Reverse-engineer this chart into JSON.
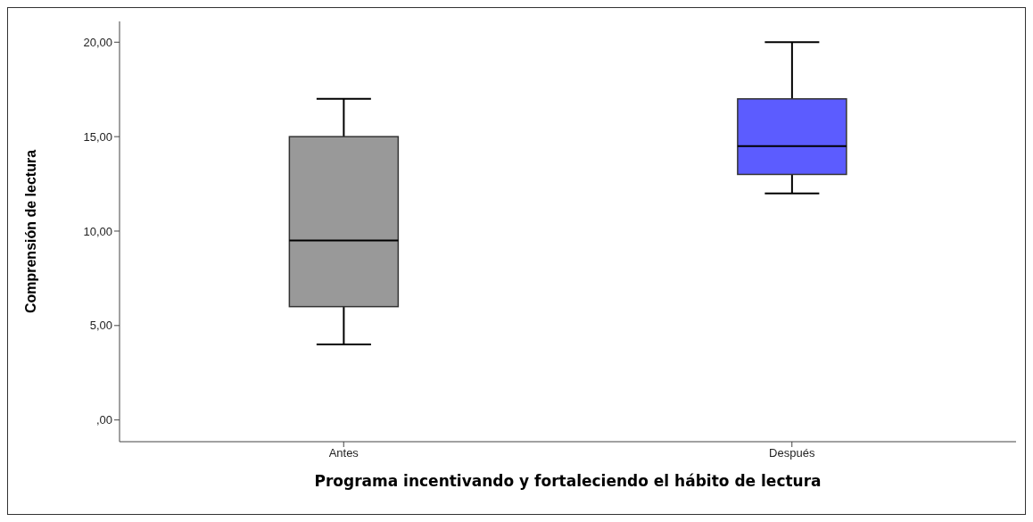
{
  "chart_data": {
    "type": "box",
    "xlabel": "Programa incentivando y fortaleciendo el hábito de lectura",
    "ylabel": "Comprensión de lectura",
    "categories": [
      "Antes",
      "Después"
    ],
    "boxes": [
      {
        "low": 4,
        "q1": 6,
        "median": 9.5,
        "q3": 15,
        "high": 17
      },
      {
        "low": 12,
        "q1": 13,
        "median": 14.5,
        "q3": 17,
        "high": 20
      }
    ],
    "colors": [
      "#999999",
      "#5c5cff"
    ],
    "ylim": [
      -1.15,
      21.1
    ],
    "yticks": [
      {
        "value": 0,
        "label": ",00"
      },
      {
        "value": 5,
        "label": "5,00"
      },
      {
        "value": 10,
        "label": "10,00"
      },
      {
        "value": 15,
        "label": "15,00"
      },
      {
        "value": 20,
        "label": "20,00"
      }
    ],
    "grid": false,
    "legend": false
  }
}
